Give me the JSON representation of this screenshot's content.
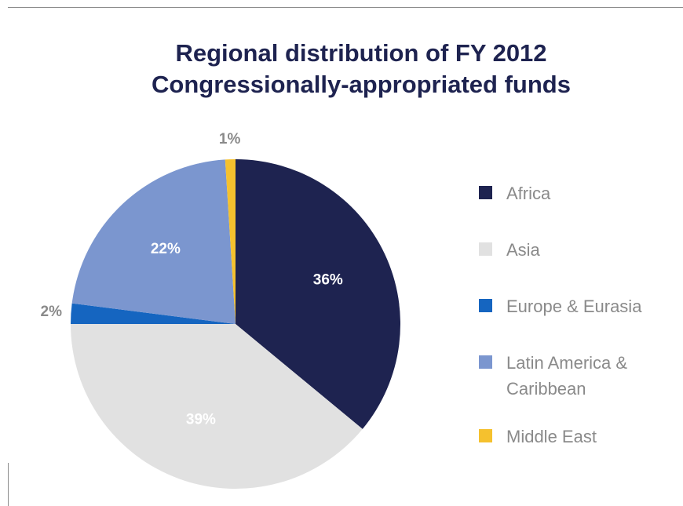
{
  "chart_data": {
    "type": "pie",
    "title": "Regional distribution of FY 2012\nCongressionally-appropriated funds",
    "title_lines": [
      "Regional distribution of FY 2012",
      "Congressionally-appropriated funds"
    ],
    "slices": [
      {
        "label": "Africa",
        "value": 36,
        "value_label": "36%",
        "color": "#1e2350",
        "label_color": "#ffffff"
      },
      {
        "label": "Asia",
        "value": 39,
        "value_label": "39%",
        "color": "#e1e1e1",
        "label_color": "#ffffff"
      },
      {
        "label": "Europe & Eurasia",
        "value": 2,
        "value_label": "2%",
        "color": "#1565c0",
        "label_color": "#8a8a8a"
      },
      {
        "label": "Latin America & Caribbean",
        "value": 22,
        "value_label": "22%",
        "color": "#7b96cf",
        "label_color": "#ffffff"
      },
      {
        "label": "Middle East",
        "value": 1,
        "value_label": "1%",
        "color": "#f5c12e",
        "label_color": "#8a8a8a"
      }
    ],
    "legend_position": "right",
    "start_angle": "12 o'clock, clockwise"
  },
  "legend": {
    "items": [
      {
        "label": "Africa",
        "color": "#1e2350"
      },
      {
        "label": "Asia",
        "color": "#e1e1e1"
      },
      {
        "label": "Europe & Eurasia",
        "color": "#1565c0"
      },
      {
        "label": "Latin America & Caribbean",
        "line1": "Latin America &",
        "line2": "Caribbean",
        "color": "#7b96cf"
      },
      {
        "label": "Middle East",
        "color": "#f5c12e"
      }
    ]
  }
}
